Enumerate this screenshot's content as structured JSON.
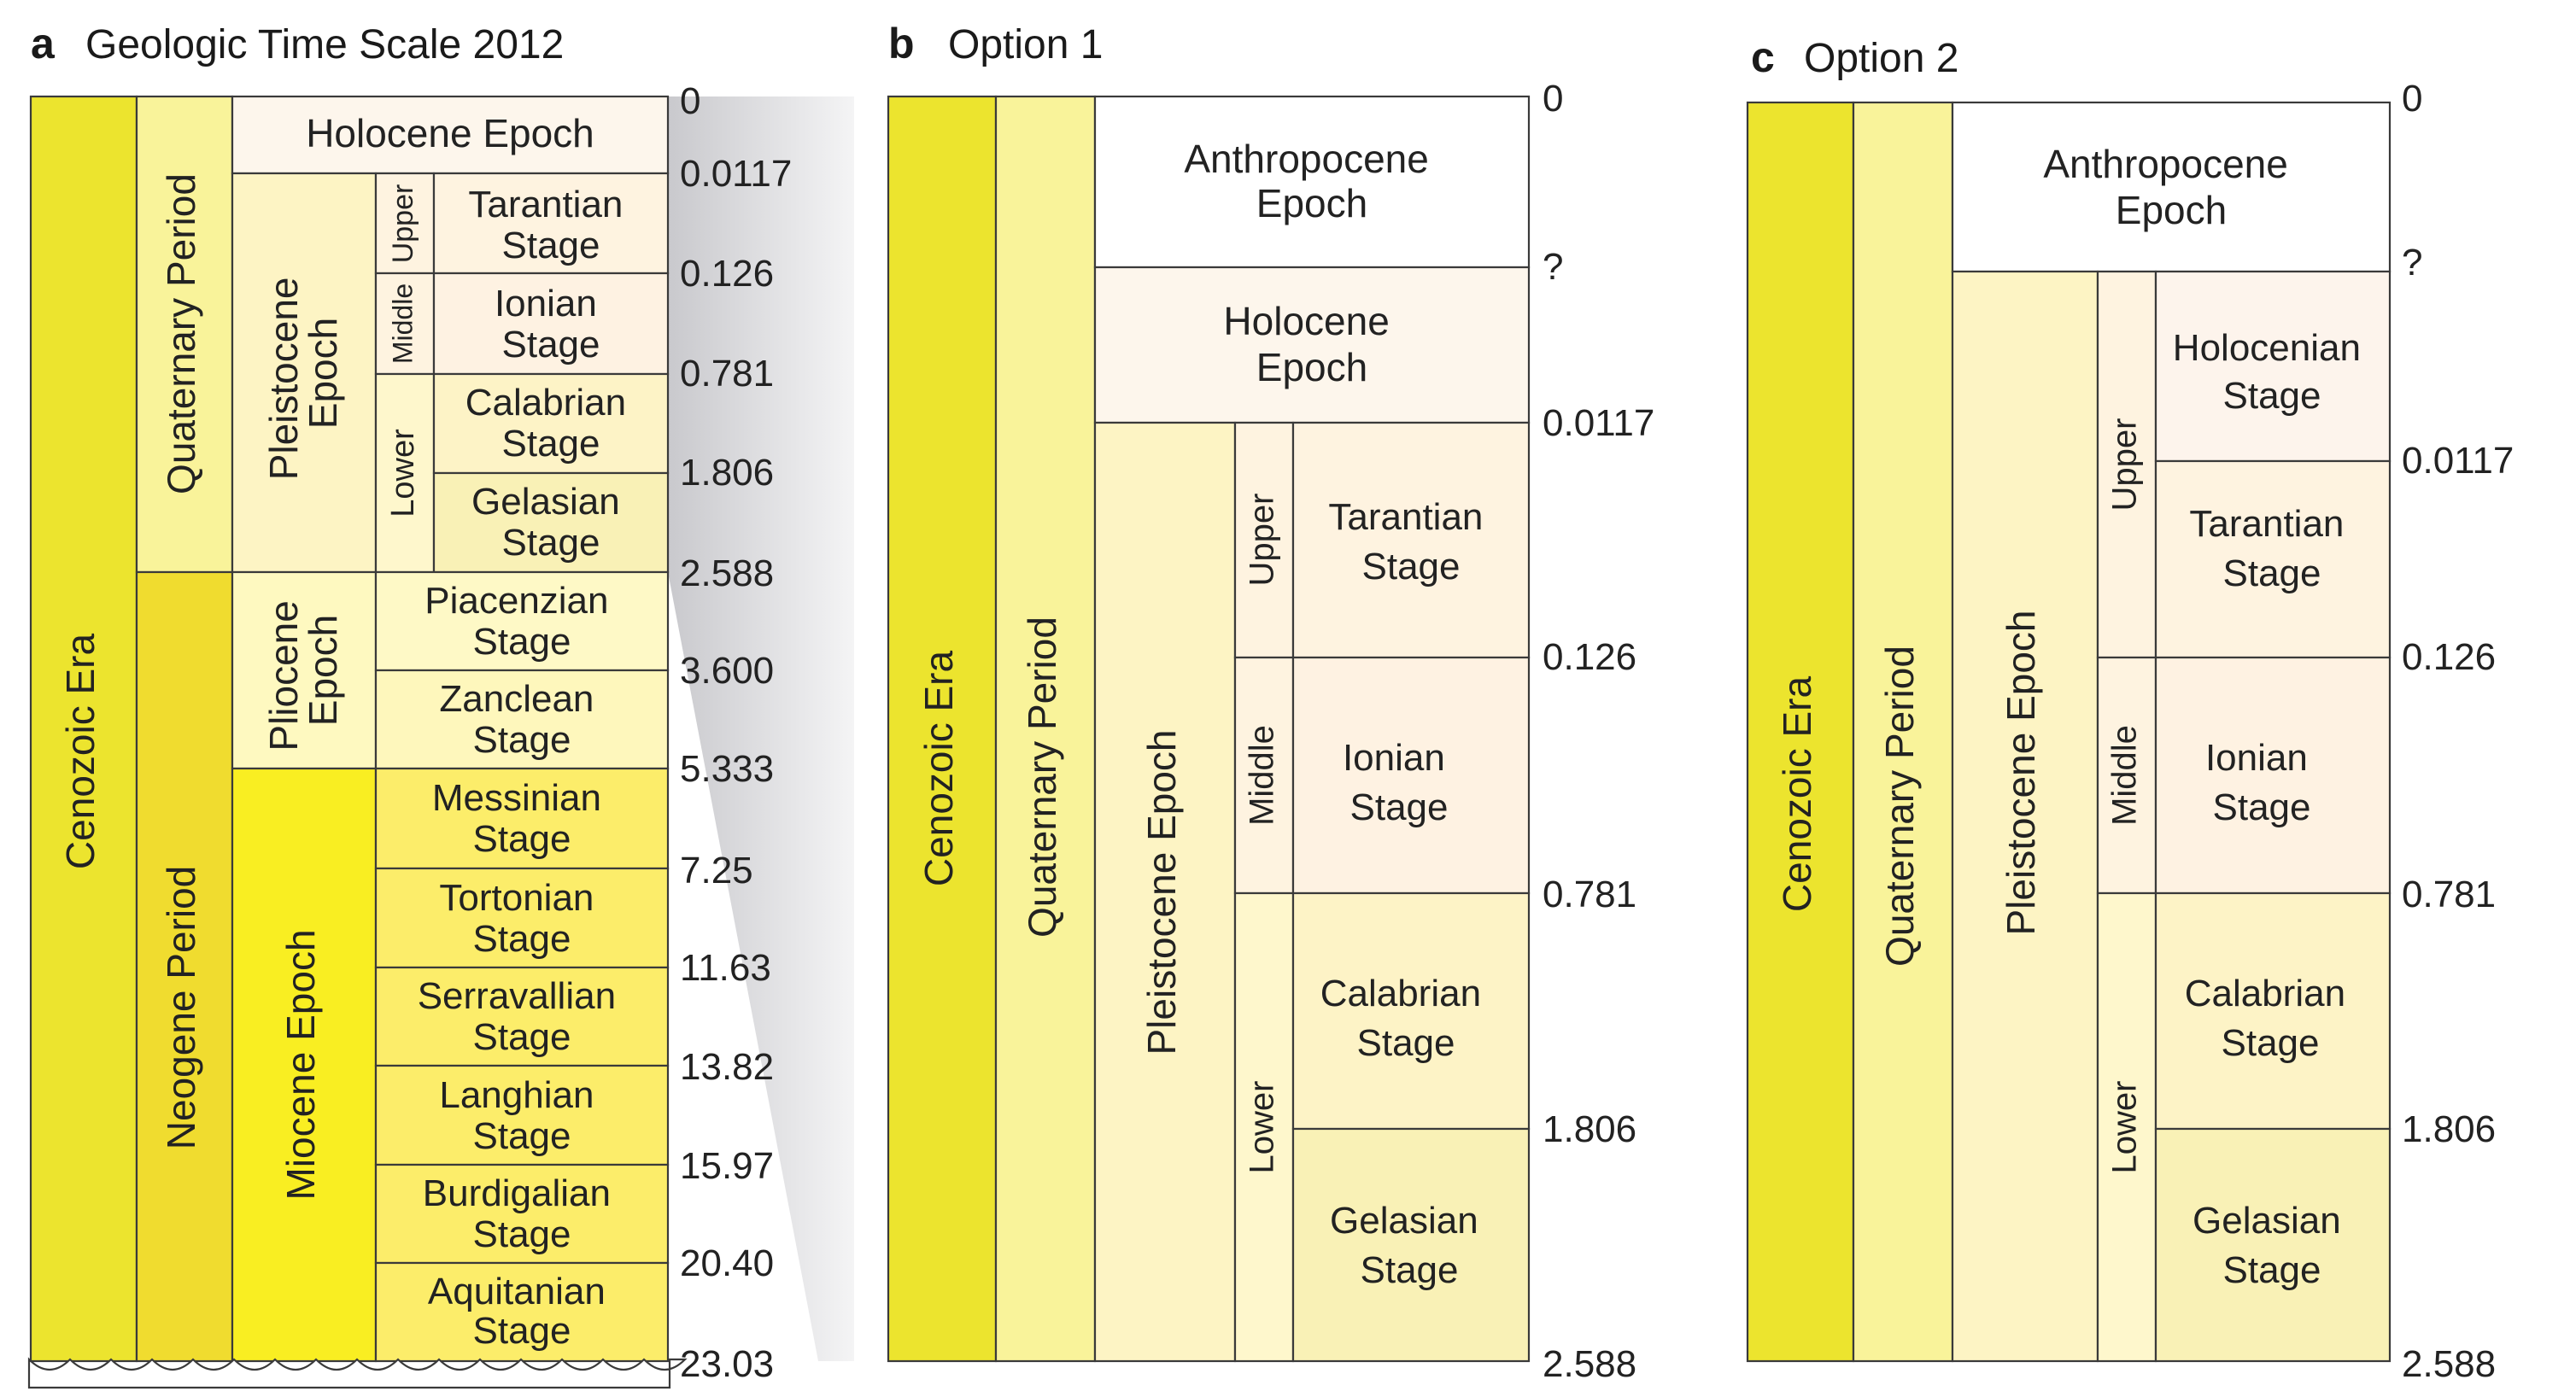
{
  "colors": {
    "era": "#ECE42E",
    "quaternary": "#F9F39A",
    "neogene": "#F0DC2F",
    "holocene_epoch": "#FDF6EC",
    "pleistocene_epoch": "#FDF4C4",
    "pliocene_epoch": "#FEF9C0",
    "miocene_epoch": "#F9EE22",
    "upper": "#FEF3E0",
    "middle": "#FEF3E0",
    "lower": "#FEF7CC",
    "tarantian": "#FEF3E0",
    "ionian": "#FEF2E2",
    "calabrian": "#FDF3C6",
    "gelasian": "#F9F1B6",
    "piacenzian": "#FEF9C6",
    "zanclean": "#FEF7BC",
    "miocene_stage": "#FCED6A",
    "anthropocene": "#FFFFFF",
    "holocenian": "#FDF4EC"
  },
  "panel_a": {
    "letter": "a",
    "title": "Geologic Time Scale 2012",
    "era": "Cenozoic Era",
    "quaternary": "Quaternary Period",
    "neogene": "Neogene Period",
    "holocene": "Holocene Epoch",
    "pleistocene": [
      "Pleistocene",
      "Epoch"
    ],
    "pliocene": [
      "Pliocene",
      "Epoch"
    ],
    "miocene": "Miocene Epoch",
    "upper": "Upper",
    "middle": "Middle",
    "lower": "Lower",
    "stages": [
      [
        "Tarantian",
        "Stage"
      ],
      [
        "Ionian",
        "Stage"
      ],
      [
        "Calabrian",
        "Stage"
      ],
      [
        "Gelasian",
        "Stage"
      ],
      [
        "Piacenzian",
        "Stage"
      ],
      [
        "Zanclean",
        "Stage"
      ],
      [
        "Messinian",
        "Stage"
      ],
      [
        "Tortonian",
        "Stage"
      ],
      [
        "Serravallian",
        "Stage"
      ],
      [
        "Langhian",
        "Stage"
      ],
      [
        "Burdigalian",
        "Stage"
      ],
      [
        "Aquitanian",
        "Stage"
      ]
    ],
    "ages": [
      "0",
      "0.0117",
      "0.126",
      "0.781",
      "1.806",
      "2.588",
      "3.600",
      "5.333",
      "7.25",
      "11.63",
      "13.82",
      "15.97",
      "20.40",
      "23.03"
    ]
  },
  "panel_b": {
    "letter": "b",
    "title": "Option 1",
    "era": "Cenozoic Era",
    "quaternary": "Quaternary Period",
    "anthropocene": [
      "Anthropocene",
      "Epoch"
    ],
    "holocene": [
      "Holocene",
      "Epoch"
    ],
    "pleistocene": "Pleistocene Epoch",
    "upper": "Upper",
    "middle": "Middle",
    "lower": "Lower",
    "stages": [
      [
        "Tarantian",
        "Stage"
      ],
      [
        "Ionian",
        "Stage"
      ],
      [
        "Calabrian",
        "Stage"
      ],
      [
        "Gelasian",
        "Stage"
      ]
    ],
    "ages": [
      "0",
      "?",
      "0.0117",
      "0.126",
      "0.781",
      "1.806",
      "2.588"
    ]
  },
  "panel_c": {
    "letter": "c",
    "title": "Option 2",
    "era": "Cenozoic Era",
    "quaternary": "Quaternary Period",
    "anthropocene": [
      "Anthropocene",
      "Epoch"
    ],
    "pleistocene": "Pleistocene Epoch",
    "upper": "Upper",
    "middle": "Middle",
    "lower": "Lower",
    "stages": [
      [
        "Holocenian",
        "Stage"
      ],
      [
        "Tarantian",
        "Stage"
      ],
      [
        "Ionian",
        "Stage"
      ],
      [
        "Calabrian",
        "Stage"
      ],
      [
        "Gelasian",
        "Stage"
      ]
    ],
    "ages": [
      "0",
      "?",
      "0.0117",
      "0.126",
      "0.781",
      "1.806",
      "2.588"
    ]
  }
}
